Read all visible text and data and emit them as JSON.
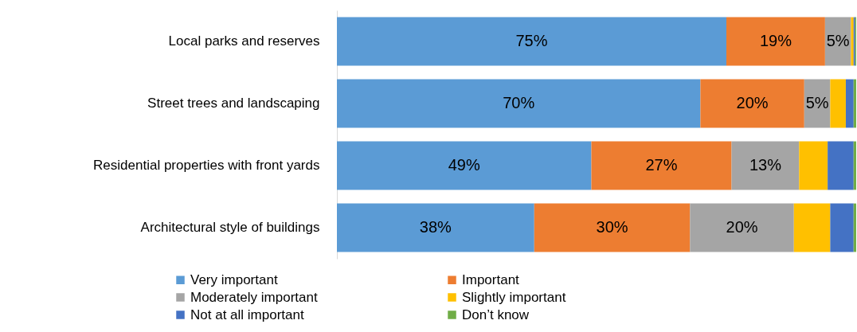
{
  "chart_data": {
    "type": "bar",
    "orientation": "horizontal",
    "stacked": true,
    "categories": [
      "Local parks and reserves",
      "Street trees and landscaping",
      "Residential properties with front yards",
      "Architectural style of buildings"
    ],
    "series": [
      {
        "name": "Very important",
        "color": "#5b9bd5",
        "values": [
          75,
          70,
          49,
          38
        ],
        "value_labels": [
          "75%",
          "70%",
          "49%",
          "38%"
        ]
      },
      {
        "name": "Important",
        "color": "#ed7d31",
        "values": [
          19,
          20,
          27,
          30
        ],
        "value_labels": [
          "19%",
          "20%",
          "27%",
          "30%"
        ]
      },
      {
        "name": "Moderately important",
        "color": "#a5a5a5",
        "values": [
          5,
          5,
          13,
          20
        ],
        "value_labels": [
          "5%",
          "5%",
          "13%",
          "20%"
        ]
      },
      {
        "name": "Slightly important",
        "color": "#ffc000",
        "values": [
          0.5,
          3,
          5.5,
          7
        ],
        "value_labels": [
          null,
          null,
          null,
          null
        ]
      },
      {
        "name": "Not at all important",
        "color": "#4472c4",
        "values": [
          0.3,
          1.5,
          5,
          4.5
        ],
        "value_labels": [
          null,
          null,
          null,
          null
        ]
      },
      {
        "name": "Don’t know",
        "color": "#70ad47",
        "values": [
          0.2,
          0.5,
          0.5,
          0.5
        ],
        "value_labels": [
          null,
          null,
          null,
          null
        ]
      }
    ],
    "xlim": [
      0,
      100
    ],
    "tick_labels": "y",
    "legend": "bottom"
  }
}
